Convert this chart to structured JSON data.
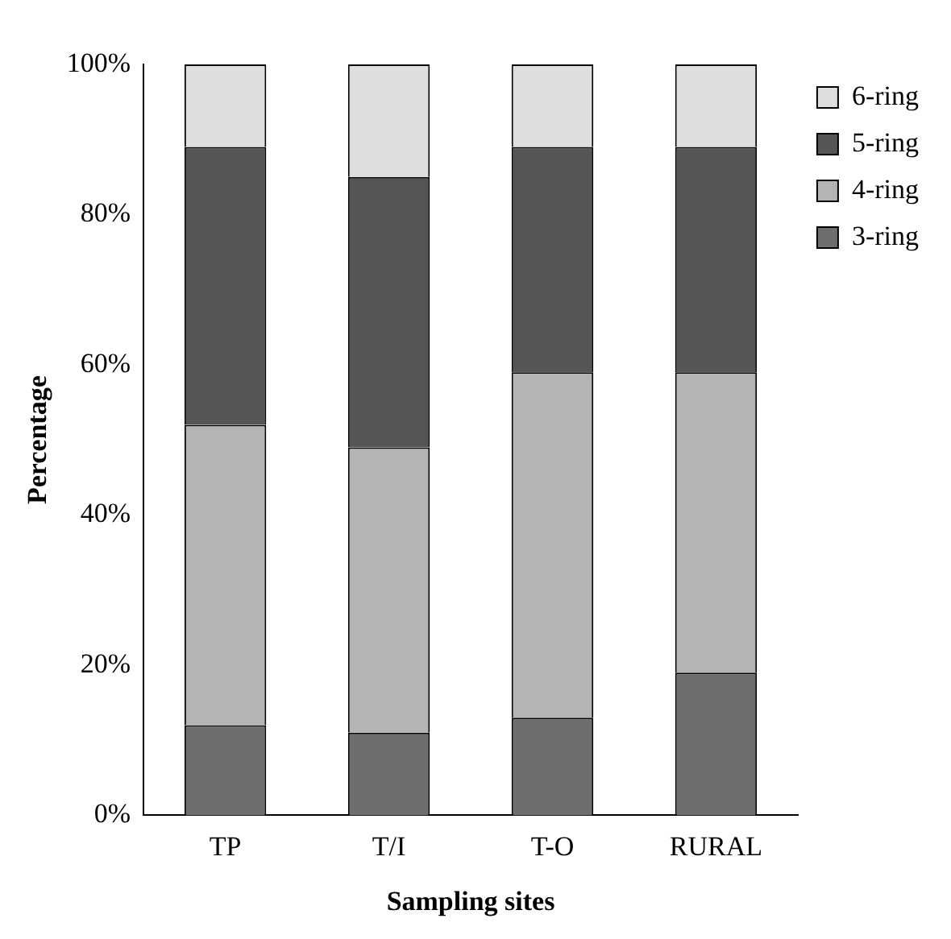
{
  "chart_data": {
    "type": "bar",
    "stacked": true,
    "xlabel": "Sampling sites",
    "ylabel": "Percentage",
    "categories": [
      "TP",
      "T/I",
      "T-O",
      "RURAL"
    ],
    "series": [
      {
        "name": "3-ring",
        "color": "#6e6e6e",
        "values": [
          12,
          11,
          13,
          19
        ]
      },
      {
        "name": "4-ring",
        "color": "#b4b4b4",
        "values": [
          40,
          38,
          46,
          40
        ]
      },
      {
        "name": "5-ring",
        "color": "#555555",
        "values": [
          37,
          36,
          30,
          30
        ]
      },
      {
        "name": "6-ring",
        "color": "#dedede",
        "values": [
          11,
          15,
          11,
          11
        ]
      }
    ],
    "ylim": [
      0,
      100
    ],
    "yticks": [
      {
        "value": 0,
        "label": "0%"
      },
      {
        "value": 20,
        "label": "20%"
      },
      {
        "value": 40,
        "label": "40%"
      },
      {
        "value": 60,
        "label": "60%"
      },
      {
        "value": 80,
        "label": "80%"
      },
      {
        "value": 100,
        "label": "100%"
      }
    ],
    "grid": false,
    "legend": "top right"
  }
}
